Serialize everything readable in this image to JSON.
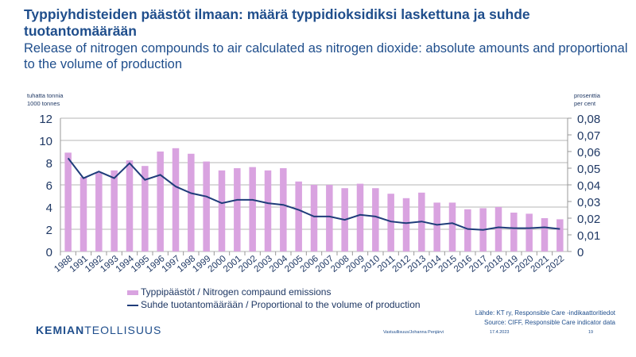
{
  "title": "Typpiyhdisteiden päästöt ilmaan: määrä typpidioksidiksi laskettuna ja suhde tuotantomäärään",
  "subtitle": "Release of nitrogen compounds to air calculated as nitrogen dioxide: absolute amounts and proportional to the volume of production",
  "footer": {
    "logo_bold": "KEMIAN",
    "logo_rest": "TEOLLISUUS",
    "author": "Vastuullisuus/Johanna Penjärvi",
    "date": "17.4.2023",
    "page": "19",
    "source_fi": "Lähde: KT ry, Responsible Care -indikaattoritiedot",
    "source_en": "Source: CIFF, Responsible Care indicator data"
  },
  "chart_data": {
    "type": "bar",
    "left_unit": [
      "tuhatta tonnia",
      "1000 tonnes"
    ],
    "right_unit": [
      "prosenttia",
      "per cent"
    ],
    "ylim": [
      0,
      12
    ],
    "yticks": [
      "0",
      "2",
      "4",
      "6",
      "8",
      "10",
      "12"
    ],
    "y2lim": [
      0,
      0.08
    ],
    "y2ticks": [
      "0",
      "0,01",
      "0,02",
      "0,03",
      "0,04",
      "0,05",
      "0,06",
      "0,07",
      "0,08"
    ],
    "categories": [
      "1988",
      "1991",
      "1992",
      "1993",
      "1994",
      "1995",
      "1996",
      "1997",
      "1998",
      "1999",
      "2000",
      "2001",
      "2002",
      "2003",
      "2004",
      "2005",
      "2006",
      "2007",
      "2008",
      "2009",
      "2010",
      "2011",
      "2012",
      "2013",
      "2014",
      "2015",
      "2016",
      "2017",
      "2018",
      "2019",
      "2020",
      "2021",
      "2022"
    ],
    "series": [
      {
        "name": "Typpipäästöt / Nitrogen compaund emissions",
        "type": "bar",
        "axis": "left",
        "color": "#d9a3e0",
        "values": [
          8.9,
          6.7,
          7.1,
          7.3,
          8.2,
          7.7,
          9.0,
          9.3,
          8.8,
          8.1,
          7.3,
          7.5,
          7.6,
          7.3,
          7.5,
          6.3,
          6.0,
          6.0,
          5.7,
          6.1,
          5.7,
          5.2,
          4.8,
          5.3,
          4.4,
          4.4,
          3.8,
          3.9,
          4.0,
          3.5,
          3.4,
          3.0,
          2.9
        ]
      },
      {
        "name": "Suhde tuotantomäärään / Proportional to the volume of production",
        "type": "line",
        "axis": "right",
        "color": "#1f3d7a",
        "values": [
          0.056,
          0.044,
          0.048,
          0.044,
          0.053,
          0.043,
          0.046,
          0.039,
          0.035,
          0.033,
          0.029,
          0.031,
          0.031,
          0.029,
          0.028,
          0.025,
          0.021,
          0.021,
          0.019,
          0.022,
          0.021,
          0.018,
          0.017,
          0.018,
          0.016,
          0.017,
          0.0135,
          0.013,
          0.0145,
          0.014,
          0.014,
          0.0145,
          0.0135
        ]
      }
    ]
  }
}
